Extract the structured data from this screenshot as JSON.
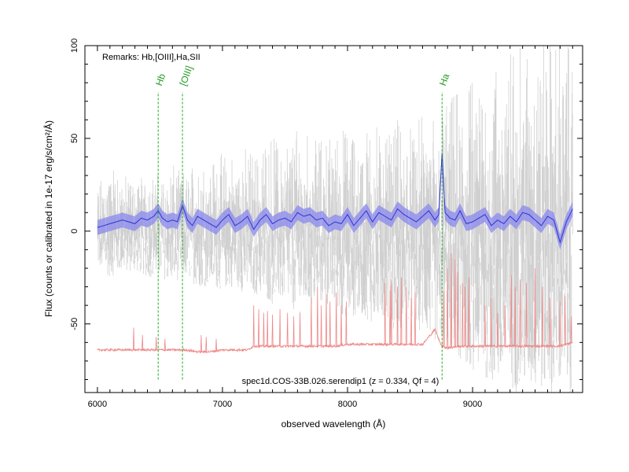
{
  "chart_data": {
    "type": "line",
    "xlabel": "observed wavelength (Å)",
    "ylabel": "Flux (counts or calibrated in 1e-17 erg/s/cm²/Å)",
    "xlim": [
      5900,
      9880
    ],
    "ylim": [
      -87,
      100
    ],
    "xticks": [
      6000,
      7000,
      8000,
      9000
    ],
    "yticks": [
      -50,
      0,
      50,
      100
    ],
    "grid": false,
    "remarks": "Remarks: Hb,[OIII],Ha,SII",
    "object_label": "spec1d.COS-33B.026.serendip1 (z = 0.334, Qf = 4)",
    "lines": [
      {
        "name": "Hb",
        "x": 6486
      },
      {
        "name": "[OIII]",
        "x": 6680
      },
      {
        "name": "Ha",
        "x": 8756
      }
    ],
    "series": [
      {
        "role": "raw",
        "color": "#c8c8c8",
        "x": [
          6000,
          6100,
          6200,
          6300,
          6400,
          6500,
          6600,
          6700,
          6800,
          6900,
          7000,
          7100,
          7200,
          7300,
          7400,
          7500,
          7600,
          7700,
          7800,
          7900,
          8000,
          8100,
          8200,
          8300,
          8400,
          8500,
          8600,
          8700,
          8800,
          8900,
          9000,
          9100,
          9200,
          9300,
          9400,
          9500,
          9600,
          9700,
          9800
        ],
        "upper": [
          25,
          35,
          30,
          28,
          32,
          30,
          36,
          30,
          40,
          38,
          42,
          40,
          45,
          42,
          50,
          48,
          55,
          50,
          48,
          52,
          55,
          50,
          58,
          52,
          60,
          55,
          62,
          60,
          70,
          75,
          80,
          85,
          90,
          95,
          100,
          100,
          100,
          100,
          100
        ],
        "lower": [
          -20,
          -25,
          -22,
          -22,
          -25,
          -25,
          -28,
          -25,
          -30,
          -30,
          -32,
          -30,
          -35,
          -35,
          -40,
          -38,
          -45,
          -42,
          -40,
          -42,
          -48,
          -45,
          -50,
          -48,
          -55,
          -50,
          -55,
          -60,
          -65,
          -70,
          -75,
          -80,
          -85,
          -87,
          -87,
          -87,
          -87,
          -87,
          -87
        ]
      },
      {
        "role": "smoothed",
        "color": "#3333cc",
        "x": [
          6000,
          6050,
          6100,
          6150,
          6200,
          6250,
          6300,
          6350,
          6400,
          6450,
          6486,
          6520,
          6560,
          6600,
          6640,
          6680,
          6720,
          6760,
          6800,
          6850,
          6900,
          6950,
          7000,
          7050,
          7100,
          7150,
          7200,
          7250,
          7300,
          7350,
          7400,
          7450,
          7500,
          7550,
          7600,
          7650,
          7700,
          7750,
          7800,
          7850,
          7900,
          7950,
          8000,
          8050,
          8100,
          8150,
          8200,
          8250,
          8300,
          8350,
          8400,
          8450,
          8500,
          8550,
          8600,
          8650,
          8700,
          8730,
          8756,
          8780,
          8820,
          8860,
          8900,
          8950,
          9000,
          9050,
          9100,
          9150,
          9200,
          9250,
          9300,
          9350,
          9400,
          9450,
          9500,
          9550,
          9600,
          9650,
          9700,
          9750,
          9800
        ],
        "y": [
          2,
          3,
          4,
          5,
          6,
          5,
          4,
          7,
          6,
          8,
          11,
          7,
          5,
          6,
          5,
          14,
          6,
          3,
          8,
          6,
          4,
          2,
          6,
          9,
          3,
          5,
          8,
          1,
          6,
          9,
          4,
          6,
          7,
          5,
          10,
          8,
          9,
          6,
          7,
          3,
          5,
          4,
          9,
          3,
          7,
          11,
          5,
          10,
          8,
          6,
          12,
          9,
          7,
          5,
          8,
          11,
          6,
          9,
          42,
          10,
          7,
          6,
          11,
          4,
          5,
          7,
          9,
          3,
          6,
          4,
          8,
          5,
          10,
          9,
          6,
          3,
          8,
          6,
          -6,
          5,
          12
        ],
        "band": 4
      },
      {
        "role": "sky",
        "color": "#ee8888",
        "x": [
          6000,
          6200,
          6300,
          6400,
          6500,
          6600,
          6700,
          6800,
          6900,
          7000,
          7100,
          7200,
          7250,
          7300,
          7400,
          7500,
          7600,
          7700,
          7800,
          7900,
          8000,
          8100,
          8200,
          8300,
          8400,
          8500,
          8600,
          8700,
          8740,
          8760,
          8800,
          8900,
          9000,
          9100,
          9200,
          9300,
          9400,
          9500,
          9600,
          9700,
          9800
        ],
        "y": [
          -64,
          -64,
          -64,
          -64,
          -64,
          -64,
          -64,
          -65,
          -65,
          -64,
          -64,
          -64,
          -62,
          -62,
          -62,
          -62,
          -62,
          -62,
          -62,
          -62,
          -61,
          -61,
          -61,
          -61,
          -61,
          -61,
          -61,
          -53,
          -60,
          -62,
          -63,
          -62,
          -62,
          -62,
          -62,
          -62,
          -62,
          -62,
          -62,
          -62,
          -60
        ],
        "peaks": [
          [
            6290,
            -52
          ],
          [
            6360,
            -56
          ],
          [
            6470,
            -57
          ],
          [
            6540,
            -58
          ],
          [
            6830,
            -56
          ],
          [
            6870,
            -57
          ],
          [
            6950,
            -58
          ],
          [
            7250,
            -40
          ],
          [
            7290,
            -42
          ],
          [
            7330,
            -44
          ],
          [
            7360,
            -43
          ],
          [
            7400,
            -45
          ],
          [
            7460,
            -42
          ],
          [
            7520,
            -44
          ],
          [
            7570,
            -46
          ],
          [
            7620,
            -44
          ],
          [
            7710,
            -36
          ],
          [
            7760,
            -30
          ],
          [
            7790,
            -40
          ],
          [
            7830,
            -34
          ],
          [
            7860,
            -38
          ],
          [
            7910,
            -33
          ],
          [
            7950,
            -40
          ],
          [
            7990,
            -38
          ],
          [
            8300,
            -28
          ],
          [
            8340,
            -32
          ],
          [
            8350,
            -26
          ],
          [
            8400,
            -30
          ],
          [
            8430,
            -25
          ],
          [
            8470,
            -30
          ],
          [
            8510,
            -36
          ],
          [
            8540,
            -33
          ],
          [
            8770,
            -32
          ],
          [
            8800,
            -20
          ],
          [
            8830,
            -12
          ],
          [
            8860,
            -15
          ],
          [
            8880,
            -22
          ],
          [
            8920,
            -28
          ],
          [
            8940,
            -30
          ],
          [
            8970,
            -25
          ],
          [
            9100,
            -40
          ],
          [
            9150,
            -36
          ],
          [
            9200,
            -44
          ],
          [
            9260,
            -40
          ],
          [
            9310,
            -24
          ],
          [
            9340,
            -30
          ],
          [
            9380,
            -26
          ],
          [
            9430,
            -28
          ],
          [
            9500,
            -20
          ],
          [
            9560,
            -30
          ],
          [
            9620,
            -36
          ],
          [
            9700,
            -38
          ],
          [
            9740,
            -35
          ],
          [
            9790,
            -46
          ]
        ]
      }
    ]
  }
}
